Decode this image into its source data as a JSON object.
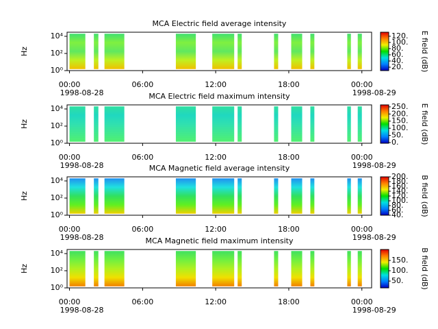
{
  "chart_data": [
    {
      "type": "spectrogram",
      "title": "MCA  Electric field average intensity",
      "ylabel": "Hz",
      "colorbar_label": "E field (dB)",
      "xlim": [
        -0.2,
        24.8
      ],
      "xticks": [
        {
          "value": 0,
          "label": "00:00"
        },
        {
          "value": 6,
          "label": "06:00"
        },
        {
          "value": 12,
          "label": "12:00"
        },
        {
          "value": 18,
          "label": "18:00"
        },
        {
          "value": 24,
          "label": "00:00"
        }
      ],
      "date_labels": [
        {
          "value": 0,
          "label": "1998-08-28"
        },
        {
          "value": 24,
          "label": "1998-08-29"
        }
      ],
      "log_y": true,
      "ylim": [
        1,
        30000
      ],
      "yticks": [
        {
          "value": 1,
          "label": "10⁰"
        },
        {
          "value": 100,
          "label": "10²"
        },
        {
          "value": 10000,
          "label": "10⁴"
        }
      ],
      "freq_range": [
        1.5,
        20000
      ],
      "data_blocks": [
        [
          0,
          1.3
        ],
        [
          2.0,
          2.37
        ],
        [
          2.87,
          4.5
        ],
        [
          8.73,
          10.37
        ],
        [
          11.72,
          13.52
        ],
        [
          13.8,
          14.14
        ],
        [
          16.79,
          17.13
        ],
        [
          18.2,
          19.1
        ],
        [
          19.77,
          20.1
        ],
        [
          22.8,
          23.1
        ],
        [
          23.66,
          24.0
        ]
      ],
      "block_colors": [
        "#40e070",
        "#80f040",
        "#60e860",
        "#c0f020",
        "#f0c000"
      ],
      "clim": [
        9,
        133
      ],
      "cticks": [
        {
          "value": 20,
          "label": "20."
        },
        {
          "value": 40,
          "label": "40."
        },
        {
          "value": 60,
          "label": "60."
        },
        {
          "value": 80,
          "label": "80."
        },
        {
          "value": 100,
          "label": "100."
        },
        {
          "value": 120,
          "label": "120."
        }
      ],
      "colormap": [
        "#0000c0",
        "#0080ff",
        "#00e0e0",
        "#00e000",
        "#f0f000",
        "#ff8000",
        "#e00000"
      ]
    },
    {
      "type": "spectrogram",
      "title": "MCA  Electric field maximum intensity",
      "ylabel": "Hz",
      "colorbar_label": "E field (dB)",
      "xlim": [
        -0.2,
        24.8
      ],
      "xticks": [
        {
          "value": 0,
          "label": "00:00"
        },
        {
          "value": 6,
          "label": "06:00"
        },
        {
          "value": 12,
          "label": "12:00"
        },
        {
          "value": 18,
          "label": "18:00"
        },
        {
          "value": 24,
          "label": "00:00"
        }
      ],
      "date_labels": [
        {
          "value": 0,
          "label": "1998-08-28"
        },
        {
          "value": 24,
          "label": "1998-08-29"
        }
      ],
      "log_y": true,
      "ylim": [
        1,
        30000
      ],
      "yticks": [
        {
          "value": 1,
          "label": "10⁰"
        },
        {
          "value": 100,
          "label": "10²"
        },
        {
          "value": 10000,
          "label": "10⁴"
        }
      ],
      "freq_range": [
        1.5,
        20000
      ],
      "data_blocks": [
        [
          0,
          1.3
        ],
        [
          2.0,
          2.37
        ],
        [
          2.87,
          4.5
        ],
        [
          8.73,
          10.37
        ],
        [
          11.72,
          13.52
        ],
        [
          13.8,
          14.14
        ],
        [
          16.79,
          17.13
        ],
        [
          18.2,
          19.1
        ],
        [
          19.77,
          20.1
        ],
        [
          22.8,
          23.1
        ],
        [
          23.66,
          24.0
        ]
      ],
      "block_colors": [
        "#30e0a0",
        "#20d8c0",
        "#30e0b0",
        "#40e890",
        "#50f070"
      ],
      "clim": [
        -5,
        264
      ],
      "cticks": [
        {
          "value": 0,
          "label": "0."
        },
        {
          "value": 50,
          "label": "50."
        },
        {
          "value": 100,
          "label": "100."
        },
        {
          "value": 150,
          "label": "150."
        },
        {
          "value": 200,
          "label": "200."
        },
        {
          "value": 250,
          "label": "250."
        }
      ],
      "colormap": [
        "#0000c0",
        "#0080ff",
        "#00e0e0",
        "#00e000",
        "#f0f000",
        "#ff8000",
        "#e00000"
      ]
    },
    {
      "type": "spectrogram",
      "title": "MCA  Magnetic field average intensity",
      "ylabel": "Hz",
      "colorbar_label": "B field (dB)",
      "xlim": [
        -0.2,
        24.8
      ],
      "xticks": [
        {
          "value": 0,
          "label": "00:00"
        },
        {
          "value": 6,
          "label": "06:00"
        },
        {
          "value": 12,
          "label": "12:00"
        },
        {
          "value": 18,
          "label": "18:00"
        },
        {
          "value": 24,
          "label": "00:00"
        }
      ],
      "date_labels": [
        {
          "value": 0,
          "label": "1998-08-28"
        },
        {
          "value": 24,
          "label": "1998-08-29"
        }
      ],
      "log_y": true,
      "ylim": [
        1,
        30000
      ],
      "yticks": [
        {
          "value": 1,
          "label": "10⁰"
        },
        {
          "value": 100,
          "label": "10²"
        },
        {
          "value": 10000,
          "label": "10⁴"
        }
      ],
      "freq_range": [
        1.5,
        20000
      ],
      "data_blocks": [
        [
          0,
          1.3
        ],
        [
          2.0,
          2.37
        ],
        [
          2.87,
          4.5
        ],
        [
          8.73,
          10.37
        ],
        [
          11.72,
          13.52
        ],
        [
          13.8,
          14.14
        ],
        [
          16.79,
          17.13
        ],
        [
          18.2,
          19.1
        ],
        [
          19.77,
          20.1
        ],
        [
          22.8,
          23.1
        ],
        [
          23.66,
          24.0
        ]
      ],
      "block_colors": [
        "#2090f0",
        "#20e0e0",
        "#30e060",
        "#60f020",
        "#f0d000"
      ],
      "clim": [
        40,
        200
      ],
      "cticks": [
        {
          "value": 40,
          "label": "40."
        },
        {
          "value": 60,
          "label": "60."
        },
        {
          "value": 80,
          "label": "80."
        },
        {
          "value": 100,
          "label": "100."
        },
        {
          "value": 120,
          "label": "120."
        },
        {
          "value": 140,
          "label": "140."
        },
        {
          "value": 160,
          "label": "160."
        },
        {
          "value": 180,
          "label": "180."
        },
        {
          "value": 200,
          "label": "200."
        }
      ],
      "colormap": [
        "#0000c0",
        "#0080ff",
        "#00e0e0",
        "#00e000",
        "#f0f000",
        "#ff8000",
        "#e00000"
      ]
    },
    {
      "type": "spectrogram",
      "title": "MCA  Magnetic field maximum intensity",
      "ylabel": "Hz",
      "colorbar_label": "B field (dB)",
      "xlim": [
        -0.2,
        24.8
      ],
      "xticks": [
        {
          "value": 0,
          "label": "00:00"
        },
        {
          "value": 6,
          "label": "06:00"
        },
        {
          "value": 12,
          "label": "12:00"
        },
        {
          "value": 18,
          "label": "18:00"
        },
        {
          "value": 24,
          "label": "00:00"
        }
      ],
      "date_labels": [
        {
          "value": 0,
          "label": "1998-08-28"
        },
        {
          "value": 24,
          "label": "1998-08-29"
        }
      ],
      "log_y": true,
      "ylim": [
        1,
        30000
      ],
      "yticks": [
        {
          "value": 1,
          "label": "10⁰"
        },
        {
          "value": 100,
          "label": "10²"
        },
        {
          "value": 10000,
          "label": "10⁴"
        }
      ],
      "freq_range": [
        1.5,
        20000
      ],
      "data_blocks": [
        [
          0,
          1.3
        ],
        [
          2.0,
          2.37
        ],
        [
          2.87,
          4.5
        ],
        [
          8.73,
          10.37
        ],
        [
          11.72,
          13.52
        ],
        [
          13.8,
          14.14
        ],
        [
          16.79,
          17.13
        ],
        [
          18.2,
          19.1
        ],
        [
          19.77,
          20.1
        ],
        [
          22.8,
          23.1
        ],
        [
          23.66,
          24.0
        ]
      ],
      "block_colors": [
        "#40e060",
        "#70f040",
        "#b0f020",
        "#f0e000",
        "#f08000"
      ],
      "clim": [
        17,
        203
      ],
      "cticks": [
        {
          "value": 50,
          "label": "50."
        },
        {
          "value": 100,
          "label": "100."
        },
        {
          "value": 150,
          "label": "150."
        }
      ],
      "colormap": [
        "#0000c0",
        "#0080ff",
        "#00e0e0",
        "#00e000",
        "#f0f000",
        "#ff8000",
        "#e00000"
      ]
    }
  ]
}
